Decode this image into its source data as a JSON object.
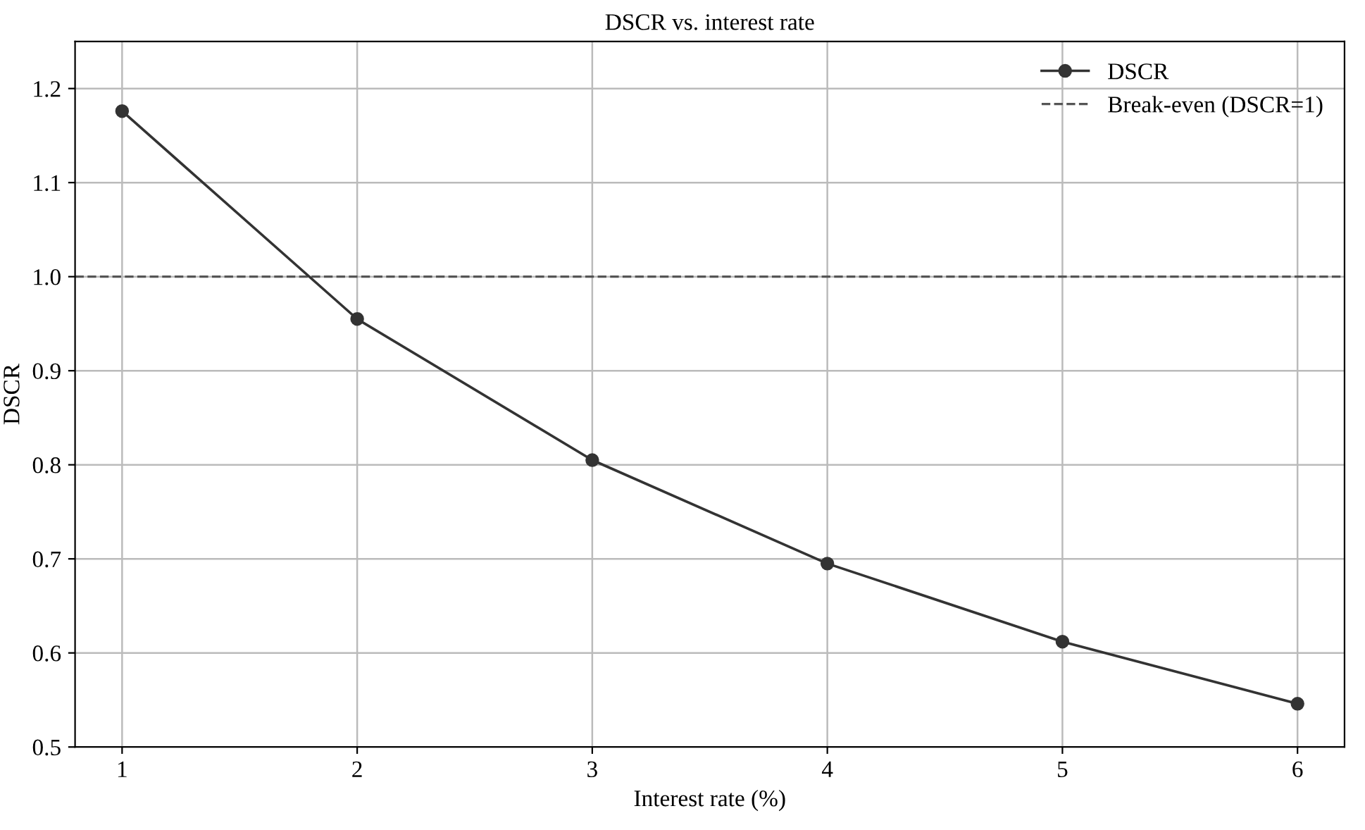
{
  "chart_data": {
    "type": "line",
    "title": "DSCR vs. interest rate",
    "xlabel": "Interest rate (%)",
    "ylabel": "DSCR",
    "x": [
      1,
      2,
      3,
      4,
      5,
      6
    ],
    "series": [
      {
        "name": "DSCR",
        "color": "#333333",
        "values": [
          1.176,
          0.955,
          0.805,
          0.695,
          0.612,
          0.546
        ]
      }
    ],
    "ref_lines": [
      {
        "axis": "y",
        "value": 1.0,
        "label": "Break-even (DSCR=1)",
        "color": "#555555",
        "line_style": "dashed"
      }
    ],
    "xlim": [
      0.8,
      6.2
    ],
    "xticks": [
      1,
      2,
      3,
      4,
      5,
      6
    ],
    "ylim": [
      0.5,
      1.25
    ],
    "yticks": [
      0.5,
      0.6,
      0.7,
      0.8,
      0.9,
      {
        "value": 1,
        "label": "1.0"
      },
      1.1,
      1.2
    ],
    "grid": true,
    "legend": "top right",
    "marker": "circle",
    "line_style": "solid"
  }
}
